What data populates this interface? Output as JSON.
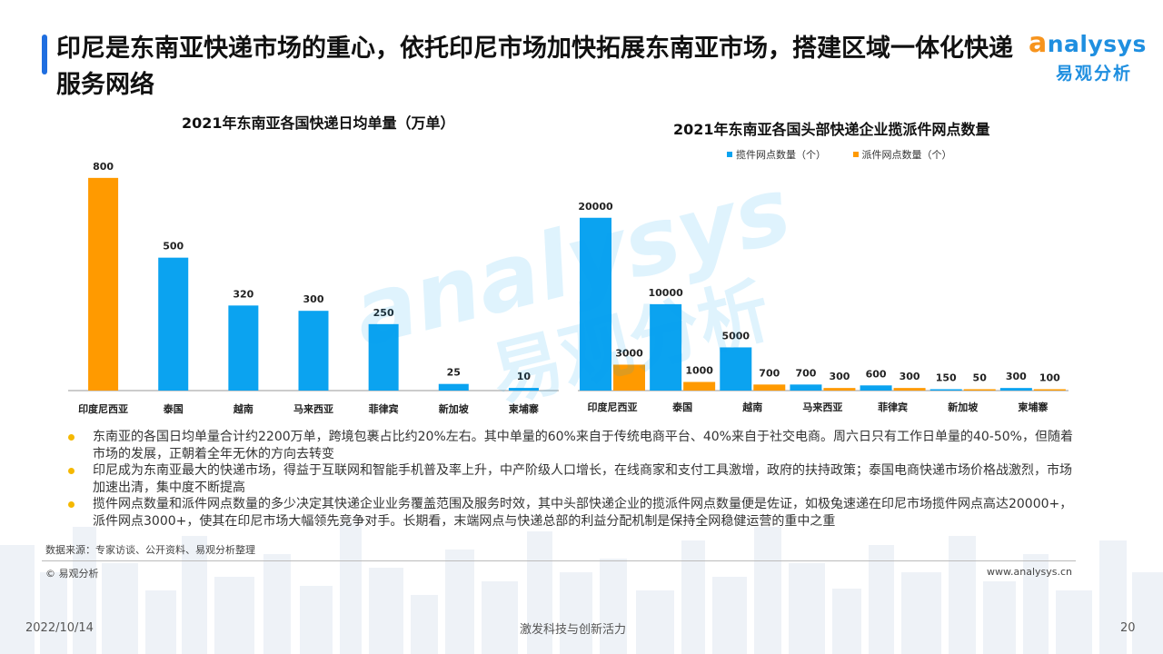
{
  "header": {
    "title": "印尼是东南亚快递市场的重心，依托印尼市场加快拓展东南亚市场，搭建区域一体化快递服务网络"
  },
  "logo": {
    "en_first": "a",
    "en_rest": "nalysys",
    "cn": "易观分析"
  },
  "watermark": {
    "en": "analysys",
    "cn": "易观分析"
  },
  "colors": {
    "blue": "#0ba3f0",
    "orange": "#ff9a00",
    "accent": "#1f6ee0",
    "bullet": "#f5b800"
  },
  "chart_data": [
    {
      "type": "bar",
      "title": "2021年东南亚各国快递日均单量（万单）",
      "categories": [
        "印度尼西亚",
        "泰国",
        "越南",
        "马来西亚",
        "菲律宾",
        "新加坡",
        "柬埔寨"
      ],
      "values": [
        800,
        500,
        320,
        300,
        250,
        25,
        10
      ],
      "bar_colors": [
        "#ff9a00",
        "#0ba3f0",
        "#0ba3f0",
        "#0ba3f0",
        "#0ba3f0",
        "#0ba3f0",
        "#0ba3f0"
      ],
      "ylim": [
        0,
        820
      ],
      "grid": false,
      "data_labels": true
    },
    {
      "type": "bar",
      "title": "2021年东南亚各国头部快递企业揽派件网点数量",
      "categories": [
        "印度尼西亚",
        "泰国",
        "越南",
        "马来西亚",
        "菲律宾",
        "新加坡",
        "柬埔寨"
      ],
      "series": [
        {
          "name": "揽件网点数量（个）",
          "color": "#0ba3f0",
          "values": [
            20000,
            10000,
            5000,
            700,
            600,
            150,
            300
          ]
        },
        {
          "name": "派件网点数量（个）",
          "color": "#ff9a00",
          "values": [
            3000,
            1000,
            700,
            300,
            300,
            50,
            100
          ]
        }
      ],
      "ylim": [
        0,
        20500
      ],
      "legend": "top",
      "grid": false,
      "data_labels": true
    }
  ],
  "bullets": [
    "东南亚的各国日均单量合计约2200万单，跨境包裹占比约20%左右。其中单量的60%来自于传统电商平台、40%来自于社交电商。周六日只有工作日单量的40-50%，但随着市场的发展，正朝着全年无休的方向去转变",
    "印尼成为东南亚最大的快递市场，得益于互联网和智能手机普及率上升，中产阶级人口增长，在线商家和支付工具激增，政府的扶持政策；泰国电商快递市场价格战激烈，市场加速出清，集中度不断提高",
    "揽件网点数量和派件网点数量的多少决定其快递企业业务覆盖范围及服务时效，其中头部快递企业的揽派件网点数量便是佐证，如极兔速递在印尼市场揽件网点高达20000+，派件网点3000+，使其在印尼市场大幅领先竞争对手。长期看，末端网点与快递总部的利益分配机制是保持全网稳健运营的重中之重"
  ],
  "footer": {
    "source": "数据来源：专家访谈、公开资料、易观分析整理",
    "copyright": "© 易观分析",
    "website": "www.analysys.cn",
    "date": "2022/10/14",
    "slogan": "激发科技与创新活力",
    "page": "20"
  }
}
